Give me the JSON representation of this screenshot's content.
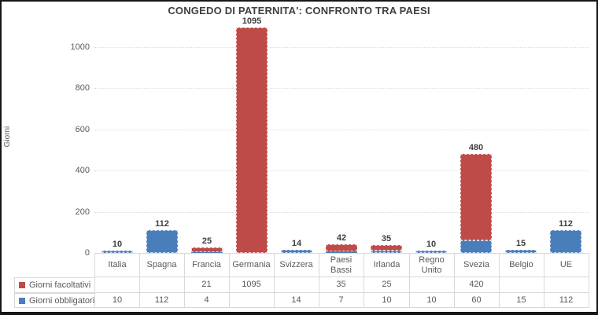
{
  "chart_data": {
    "type": "bar",
    "stacked": true,
    "title": "CONGEDO DI PATERNITA': CONFRONTO TRA PAESI",
    "ylabel": "Giorni",
    "categories": [
      "Italia",
      "Spagna",
      "Francia",
      "Germania",
      "Svizzera",
      "Paesi Bassi",
      "Irlanda",
      "Regno Unito",
      "Svezia",
      "Belgio",
      "UE"
    ],
    "series": [
      {
        "name": "Giorni facoltativi",
        "color": "#BE4B48",
        "values": [
          null,
          null,
          21,
          1095,
          null,
          35,
          25,
          null,
          420,
          null,
          null
        ]
      },
      {
        "name": "Giorni obbligatori",
        "color": "#4A7EBB",
        "values": [
          10,
          112,
          4,
          null,
          14,
          7,
          10,
          10,
          60,
          15,
          112
        ]
      }
    ],
    "bar_labels": [
      10,
      112,
      25,
      1095,
      14,
      42,
      35,
      10,
      480,
      15,
      112
    ],
    "yticks": [
      0,
      200,
      400,
      600,
      800,
      1000
    ],
    "ylim": [
      0,
      1110
    ],
    "grid": "horizontal-dotted",
    "legend_position": "data-table-left",
    "colors": {
      "facoltativi": "#BE4B48",
      "obbligatori": "#4A7EBB",
      "grid": "#dcdcdc",
      "axis": "#bfbfbf",
      "text": "#595959",
      "title_text": "#3f3f3f",
      "table_border": "#d9d9d9",
      "frame_border": "#161616"
    }
  }
}
